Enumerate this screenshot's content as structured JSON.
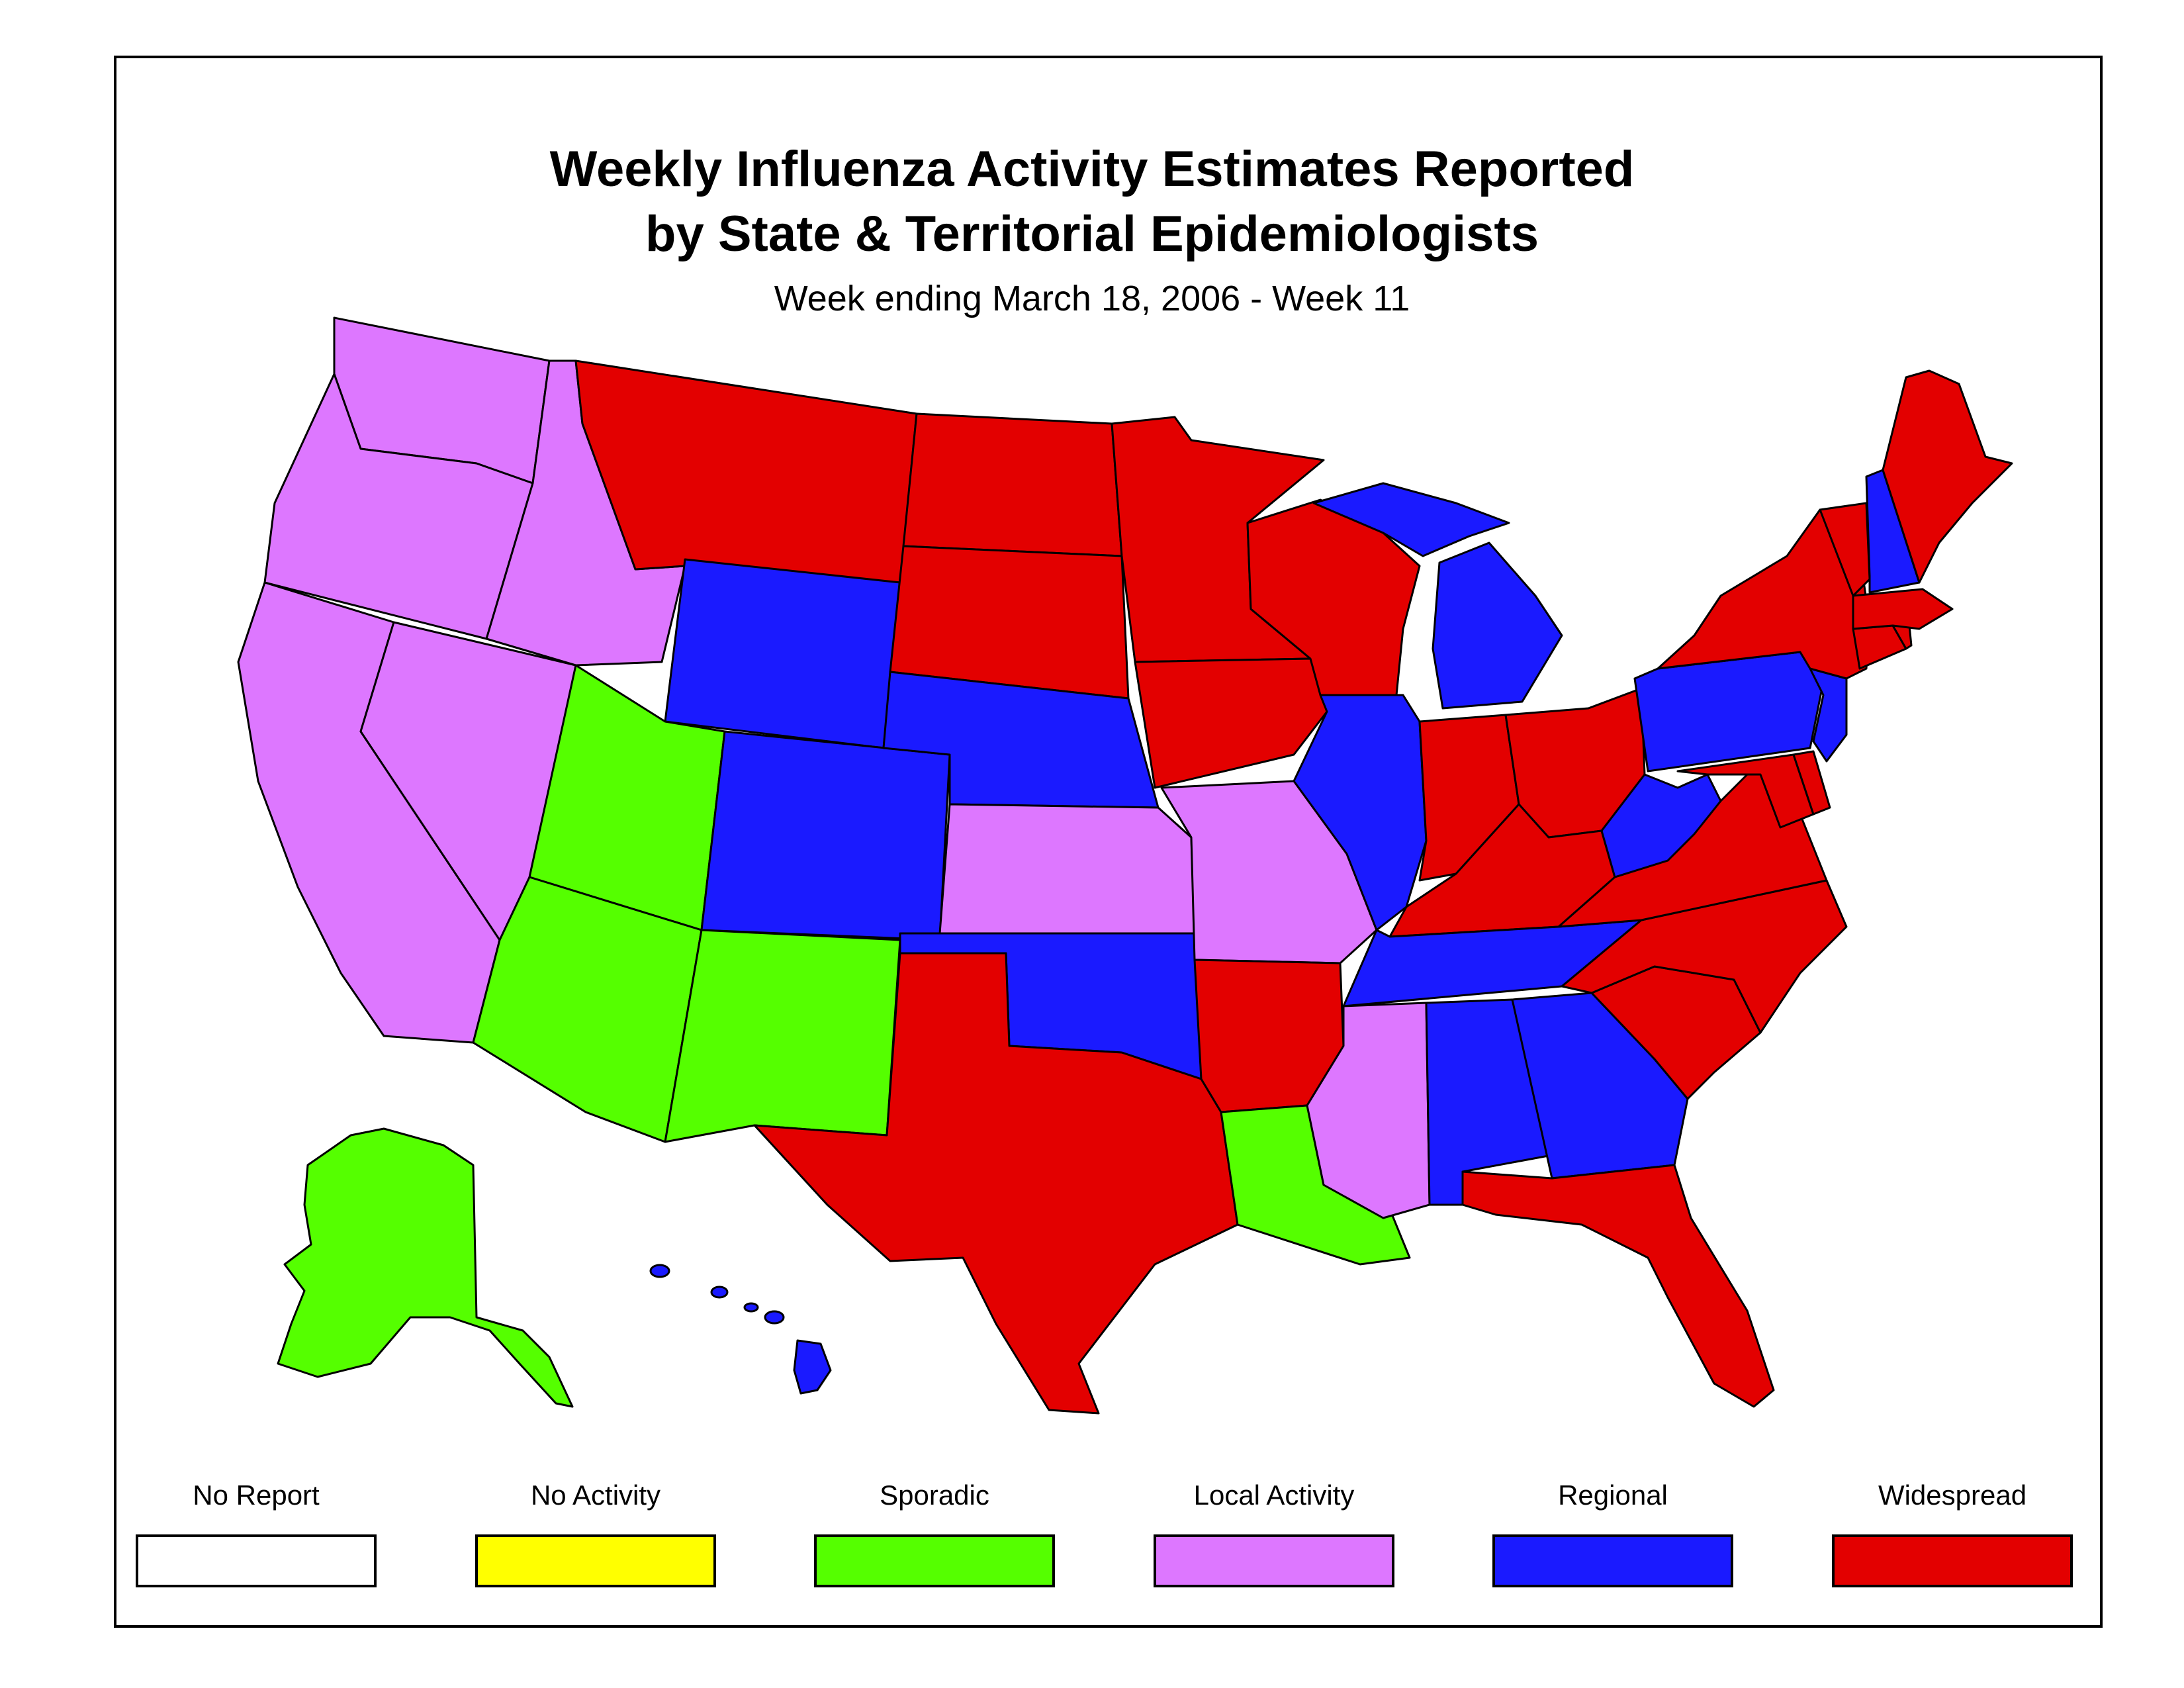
{
  "title_line1": "Weekly Influenza Activity Estimates Reported",
  "title_line2": "by State & Territorial Epidemiologists",
  "subtitle": "Week ending March 18, 2006 - Week 11",
  "colors": {
    "no_report": "#ffffff",
    "no_activity": "#ffff00",
    "sporadic": "#55ff00",
    "local": "#dd77ff",
    "regional": "#1a1aff",
    "widespread": "#e30000"
  },
  "legend": [
    {
      "label": "No Report",
      "key": "no_report"
    },
    {
      "label": "No Activity",
      "key": "no_activity"
    },
    {
      "label": "Sporadic",
      "key": "sporadic"
    },
    {
      "label": "Local Activity",
      "key": "local"
    },
    {
      "label": "Regional",
      "key": "regional"
    },
    {
      "label": "Widespread",
      "key": "widespread"
    }
  ],
  "states": {
    "WA": "local",
    "OR": "local",
    "CA": "local",
    "NV": "local",
    "ID": "local",
    "MT": "widespread",
    "WY": "regional",
    "UT": "sporadic",
    "AZ": "sporadic",
    "CO": "regional",
    "NM": "sporadic",
    "ND": "widespread",
    "SD": "widespread",
    "NE": "regional",
    "KS": "local",
    "OK": "regional",
    "TX": "widespread",
    "MN": "widespread",
    "IA": "widespread",
    "MO": "local",
    "AR": "widespread",
    "LA": "sporadic",
    "WI": "widespread",
    "IL": "regional",
    "MI": "regional",
    "IN": "widespread",
    "OH": "widespread",
    "KY": "widespread",
    "TN": "regional",
    "MS": "local",
    "AL": "regional",
    "GA": "regional",
    "FL": "widespread",
    "SC": "widespread",
    "NC": "widespread",
    "VA": "widespread",
    "WV": "regional",
    "MD": "widespread",
    "DE": "widespread",
    "PA": "regional",
    "NJ": "regional",
    "NY": "widespread",
    "CT": "widespread",
    "RI": "widespread",
    "MA": "widespread",
    "VT": "widespread",
    "NH": "regional",
    "ME": "widespread",
    "AK": "sporadic",
    "HI": "regional"
  }
}
